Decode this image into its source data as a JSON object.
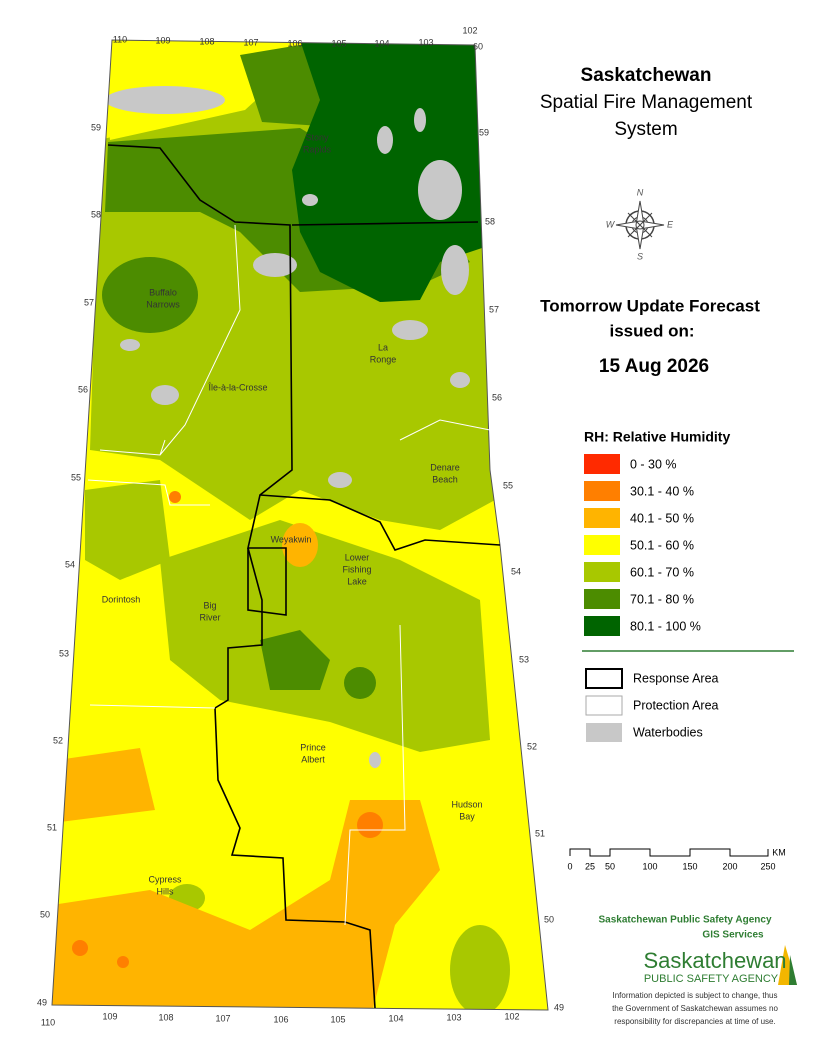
{
  "header": {
    "title": "Saskatchewan",
    "subtitle": [
      "Spatial Fire Management",
      "System"
    ]
  },
  "forecast": {
    "title": "Tomorrow Update Forecast",
    "issued": "issued on:",
    "date": "15 Aug 2026"
  },
  "legend": {
    "title": "RH: Relative Humidity",
    "classes": [
      {
        "label": "0 - 30 %",
        "color": "#ff2a00"
      },
      {
        "label": "30.1 - 40 %",
        "color": "#ff7f00"
      },
      {
        "label": "40.1 - 50 %",
        "color": "#ffb400"
      },
      {
        "label": "50.1 - 60 %",
        "color": "#ffff00"
      },
      {
        "label": "60.1 - 70 %",
        "color": "#a8c800"
      },
      {
        "label": "70.1 - 80 %",
        "color": "#4c8c00"
      },
      {
        "label": "80.1 - 100 %",
        "color": "#006400"
      }
    ]
  },
  "boundaries": [
    {
      "label": "Response Area"
    },
    {
      "label": "Protection Area"
    },
    {
      "label": "Waterbodies"
    }
  ],
  "scale": {
    "ticks": [
      0,
      25,
      50,
      100,
      150,
      200,
      250
    ],
    "unit": "KM"
  },
  "places": [
    {
      "lines": [
        "Stony",
        "Rapids"
      ]
    },
    {
      "lines": [
        "Buffalo",
        "Narrows"
      ]
    },
    {
      "lines": [
        "La",
        "Ronge"
      ]
    },
    {
      "lines": [
        "Île-à-la-Crosse"
      ]
    },
    {
      "lines": [
        "Denare",
        "Beach"
      ]
    },
    {
      "lines": [
        "Weyakwin"
      ]
    },
    {
      "lines": [
        "Lower",
        "Fishing",
        "Lake"
      ]
    },
    {
      "lines": [
        "Dorintosh"
      ]
    },
    {
      "lines": [
        "Big",
        "River"
      ]
    },
    {
      "lines": [
        "Prince",
        "Albert"
      ]
    },
    {
      "lines": [
        "Hudson",
        "Bay"
      ]
    },
    {
      "lines": [
        "Cypress",
        "Hills"
      ]
    }
  ],
  "graticule": {
    "top": [
      110,
      109,
      108,
      107,
      106,
      105,
      104,
      103,
      102,
      60
    ],
    "bottom": [
      110,
      109,
      108,
      107,
      106,
      105,
      104,
      103,
      102,
      49
    ],
    "left": [
      59,
      58,
      57,
      56,
      55,
      54,
      53,
      52,
      51,
      50,
      49
    ],
    "right": [
      59,
      58,
      57,
      56,
      55,
      54,
      53,
      52,
      51,
      50
    ]
  },
  "agency": {
    "name": "Saskatchewan Public Safety Agency",
    "unit": "GIS  Services",
    "logo": "Saskatchewan",
    "logo_sub": "PUBLIC SAFETY AGENCY",
    "disclaimer": [
      "Information depicted is subject to change, thus",
      "the Government of Saskatchewan assumes no",
      "responsibility for discrepancies at time of use."
    ]
  }
}
